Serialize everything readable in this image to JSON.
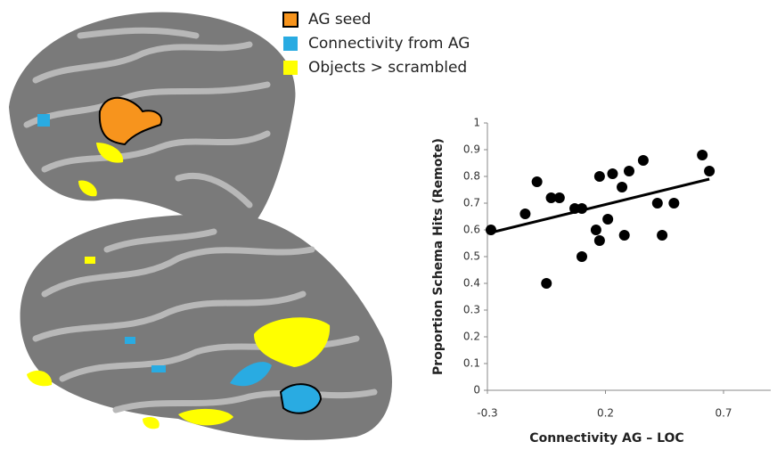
{
  "legend": [
    {
      "label": "AG seed",
      "color": "#f7941d",
      "outline": "#000000"
    },
    {
      "label": "Connectivity from AG",
      "color": "#29abe2"
    },
    {
      "label": "Objects > scrambled",
      "color": "#ffff00"
    }
  ],
  "chart_data": {
    "type": "scatter",
    "xlabel": "Connectivity AG – LOC",
    "ylabel": "Proportion Schema Hits (Remote)",
    "x": [
      -0.285,
      -0.14,
      -0.09,
      -0.03,
      0.005,
      0.07,
      0.1,
      -0.05,
      0.1,
      0.175,
      0.23,
      0.3,
      0.36,
      0.27,
      0.21,
      0.16,
      0.175,
      0.28,
      0.42,
      0.49,
      0.44,
      0.61,
      0.64
    ],
    "values": [
      0.6,
      0.66,
      0.78,
      0.72,
      0.72,
      0.68,
      0.68,
      0.4,
      0.5,
      0.8,
      0.81,
      0.82,
      0.86,
      0.76,
      0.64,
      0.6,
      0.56,
      0.58,
      0.7,
      0.7,
      0.58,
      0.88,
      0.82
    ],
    "color": "#000000",
    "trendline": {
      "x": [
        -0.285,
        0.64
      ],
      "y": [
        0.59,
        0.79
      ]
    },
    "xlim": [
      -0.3,
      0.9
    ],
    "xticks": [
      -0.3,
      0.2,
      0.7
    ],
    "ylim": [
      0,
      1
    ],
    "yticks": [
      0,
      0.1,
      0.2,
      0.3,
      0.4,
      0.5,
      0.6,
      0.7,
      0.8,
      0.9,
      1
    ]
  }
}
